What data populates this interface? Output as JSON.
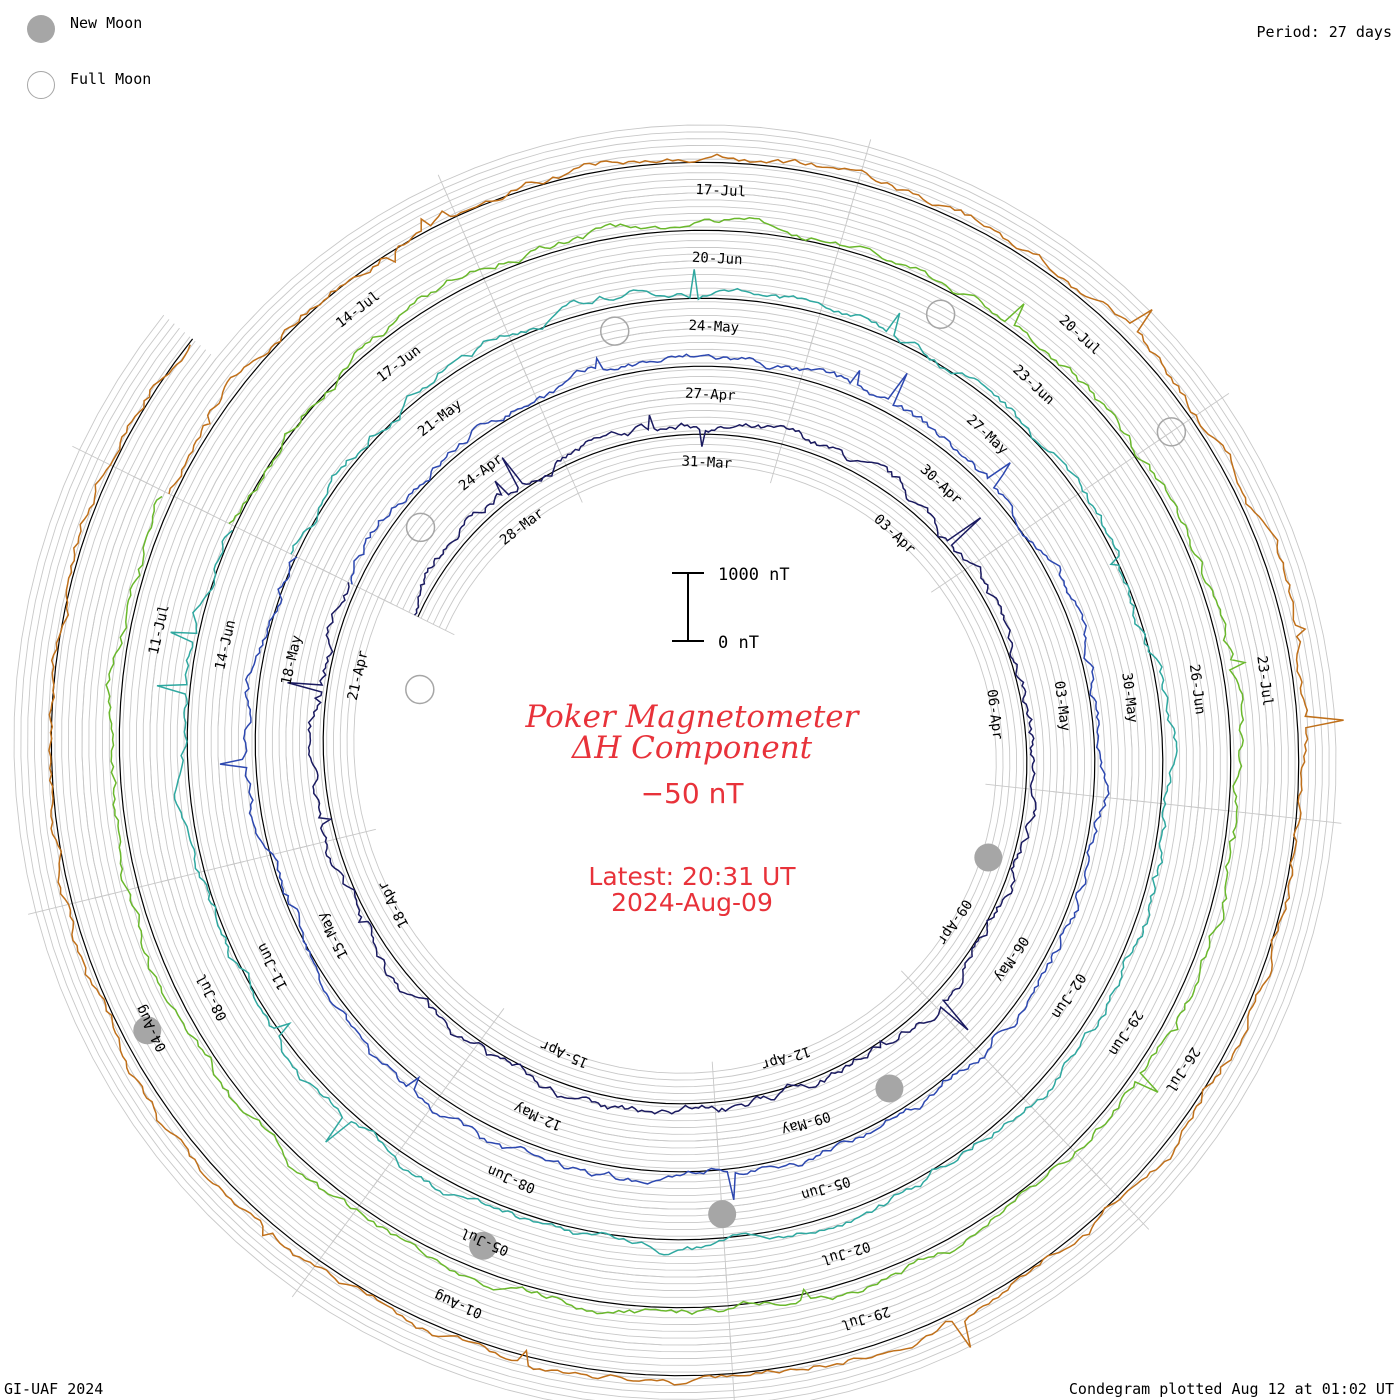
{
  "legend": {
    "new_moon_label": "New Moon",
    "full_moon_label": "Full Moon",
    "new_moon_color": "#a6a6a6"
  },
  "period_label": "Period: 27 days",
  "footer": {
    "left": "GI-UAF 2024",
    "right": "Condegram plotted Aug 12 at 01:02 UT"
  },
  "title": {
    "line1": "Poker Magnetometer",
    "line2": "ΔH Component",
    "baseline": "−50 nT",
    "latest_time": "Latest: 20:31 UT",
    "latest_date": "2024-Aug-09",
    "color": "#e8323a"
  },
  "scale_bar": {
    "top_label": "1000 nT",
    "bottom_label": "0 nT"
  },
  "chart_data": {
    "type": "line",
    "subtype": "spiral condegram",
    "period_days": 27,
    "units": "nT",
    "baseline_nT": -50,
    "scale_nT": [
      0,
      1000
    ],
    "series": [
      {
        "start": "2024-03-26",
        "end": "2024-04-22",
        "color": "#1a1a60",
        "date_labels": [
          "28-Mar",
          "31-Mar",
          "03-Apr",
          "06-Apr",
          "09-Apr",
          "12-Apr",
          "15-Apr",
          "18-Apr",
          "21-Apr"
        ]
      },
      {
        "start": "2024-04-22",
        "end": "2024-05-19",
        "color": "#2d48b0",
        "date_labels": [
          "24-Apr",
          "27-Apr",
          "30-Apr",
          "03-May",
          "06-May",
          "09-May",
          "12-May",
          "15-May",
          "18-May"
        ]
      },
      {
        "start": "2024-05-19",
        "end": "2024-06-15",
        "color": "#2fa8a0",
        "date_labels": [
          "21-May",
          "24-May",
          "27-May",
          "30-May",
          "02-Jun",
          "05-Jun",
          "08-Jun",
          "11-Jun",
          "14-Jun"
        ]
      },
      {
        "start": "2024-06-15",
        "end": "2024-07-12",
        "color": "#6ab82c",
        "date_labels": [
          "17-Jun",
          "20-Jun",
          "23-Jun",
          "26-Jun",
          "29-Jun",
          "02-Jul",
          "05-Jul",
          "08-Jul",
          "11-Jul"
        ]
      },
      {
        "start": "2024-07-12",
        "end": "2024-08-09",
        "color": "#c0701a",
        "date_labels": [
          "14-Jul",
          "17-Jul",
          "20-Jul",
          "23-Jul",
          "26-Jul",
          "29-Jul",
          "01-Aug",
          "04-Aug"
        ]
      }
    ],
    "new_moons": [
      "2024-04-08",
      "2024-05-08",
      "2024-06-06",
      "2024-07-05",
      "2024-08-04"
    ],
    "full_moons": [
      "2024-03-25",
      "2024-04-23",
      "2024-05-23",
      "2024-06-22",
      "2024-07-21"
    ],
    "grid": true
  }
}
